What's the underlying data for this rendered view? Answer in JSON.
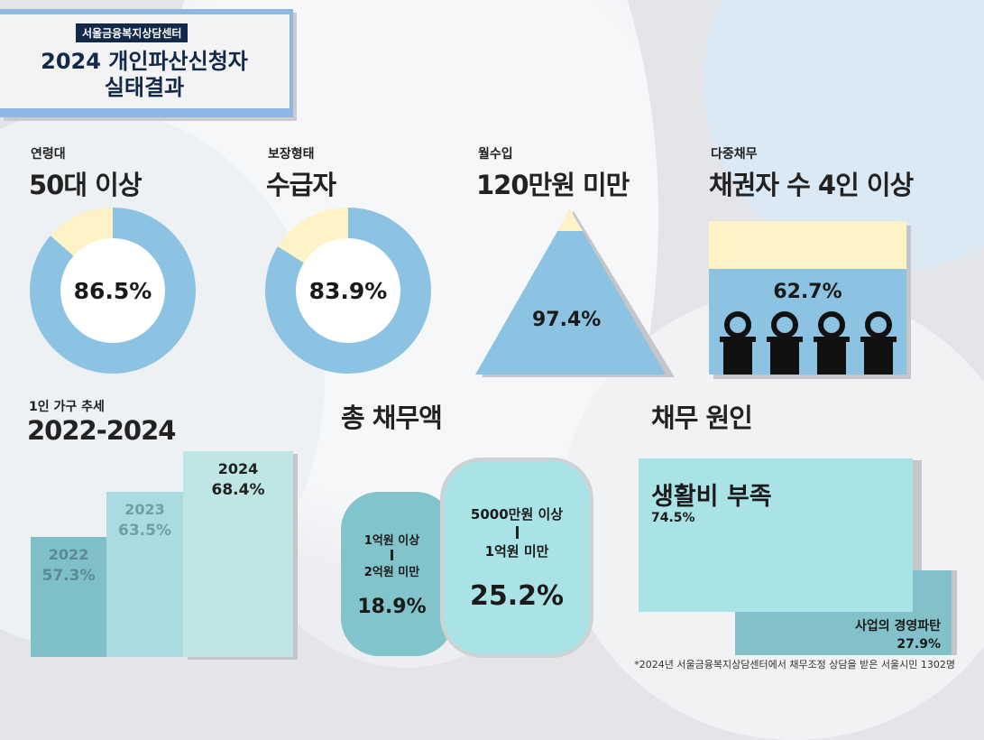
{
  "header": {
    "org": "서울금융복지상담센터",
    "title_line1": "2024 개인파산신청자",
    "title_line2": "실태결과"
  },
  "colors": {
    "navy": "#13294b",
    "blue": "#8cc2e2",
    "cream": "#fdf3c6",
    "teal_dark": "#82c1c9",
    "teal_light": "#a9e3e6"
  },
  "age": {
    "label": "연령대",
    "headline": "50대 이상",
    "value": "86.5%",
    "percent": 86.5
  },
  "security": {
    "label": "보장형태",
    "headline": "수급자",
    "value": "83.9%",
    "percent": 83.9
  },
  "income": {
    "label": "월수입",
    "headline": "120만원 미만",
    "value": "97.4%",
    "percent": 97.4
  },
  "multi_debt": {
    "label": "다중채무",
    "headline": "채권자 수 4인 이상",
    "value": "62.7%",
    "percent": 62.7
  },
  "single_household": {
    "label": "1인 가구 추세",
    "headline": "2022-2024",
    "bars": [
      {
        "year": "2022",
        "value": "57.3%"
      },
      {
        "year": "2023",
        "value": "63.5%"
      },
      {
        "year": "2024",
        "value": "68.4%"
      }
    ]
  },
  "total_debt": {
    "title": "총 채무액",
    "a": {
      "line1": "1억원 이상",
      "line2": "2억원 미만",
      "value": "18.9%"
    },
    "b": {
      "line1": "5000만원 이상",
      "line2": "1억원 미만",
      "value": "25.2%"
    }
  },
  "cause": {
    "title": "채무 원인",
    "a": {
      "label": "생활비 부족",
      "value": "74.5%"
    },
    "b": {
      "label": "사업의 경영파탄",
      "value": "27.9%"
    }
  },
  "footnote": "*2024년 서울금융복지상담센터에서 채무조정 상담을 받은 서울시민 1302명"
}
